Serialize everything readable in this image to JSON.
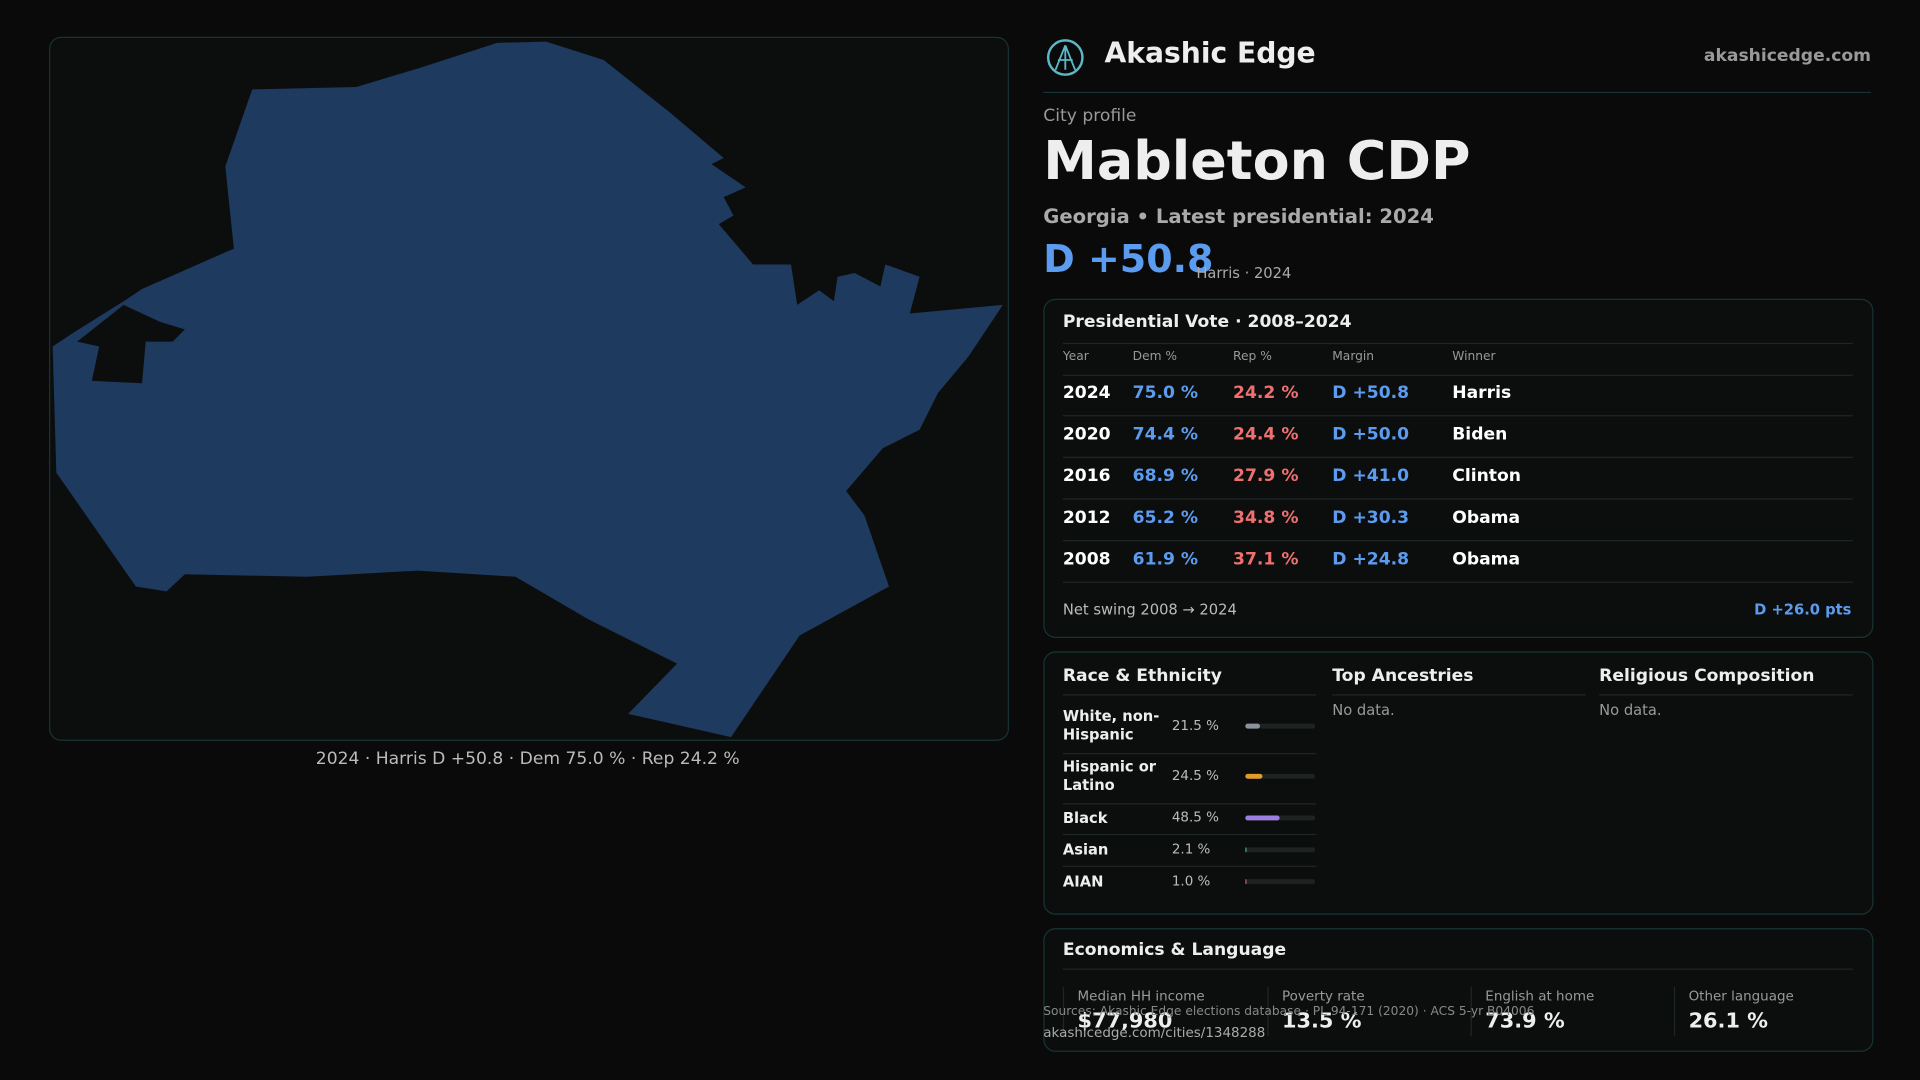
{
  "brand": {
    "name": "Akashic Edge",
    "url": "akashicedge.com"
  },
  "map": {
    "caption": "2024 · Harris D +50.8 · Dem 75.0 % · Rep 24.2 %"
  },
  "profile": {
    "eyebrow": "City profile",
    "title": "Mableton CDP",
    "subtitle": "Georgia • Latest presidential: 2024",
    "margin": "D +50.8",
    "margin_note": "Harris · 2024"
  },
  "presidential": {
    "title": "Presidential Vote · 2008–2024",
    "columns": [
      "Year",
      "Dem %",
      "Rep %",
      "Margin",
      "Winner"
    ],
    "rows": [
      [
        "2024",
        "75.0 %",
        "24.2 %",
        "D +50.8",
        "Harris"
      ],
      [
        "2020",
        "74.4 %",
        "24.4 %",
        "D +50.0",
        "Biden"
      ],
      [
        "2016",
        "68.9 %",
        "27.9 %",
        "D +41.0",
        "Clinton"
      ],
      [
        "2012",
        "65.2 %",
        "34.8 %",
        "D +30.3",
        "Obama"
      ],
      [
        "2008",
        "61.9 %",
        "37.1 %",
        "D +24.8",
        "Obama"
      ]
    ],
    "swing_label": "Net swing 2008 → 2024",
    "swing_value": "D +26.0 pts"
  },
  "race": {
    "title": "Race & Ethnicity",
    "rows": [
      {
        "name": "White, non-Hispanic",
        "value": 21.5,
        "label": "21.5 %",
        "color": "#8a929c"
      },
      {
        "name": "Hispanic or Latino",
        "value": 24.5,
        "label": "24.5 %",
        "color": "#e39a2a"
      },
      {
        "name": "Black",
        "value": 48.5,
        "label": "48.5 %",
        "color": "#9b7fe0"
      },
      {
        "name": "Asian",
        "value": 2.1,
        "label": "2.1 %",
        "color": "#3aa89a"
      },
      {
        "name": "AIAN",
        "value": 1.0,
        "label": "1.0 %",
        "color": "#c06060"
      }
    ]
  },
  "ancestries": {
    "title": "Top Ancestries",
    "note": "No data."
  },
  "religion": {
    "title": "Religious Composition",
    "note": "No data."
  },
  "economics": {
    "title": "Economics & Language",
    "stats": [
      {
        "label": "Median HH income",
        "value": "$77,980"
      },
      {
        "label": "Poverty rate",
        "value": "13.5 %"
      },
      {
        "label": "English at home",
        "value": "73.9 %"
      },
      {
        "label": "Other language",
        "value": "26.1 %"
      }
    ]
  },
  "footer": {
    "source": "Sources: Akashic Edge elections database · PL 94-171 (2020) · ACS 5-yr B04006",
    "url": "akashicedge.com/cities/1348288"
  }
}
